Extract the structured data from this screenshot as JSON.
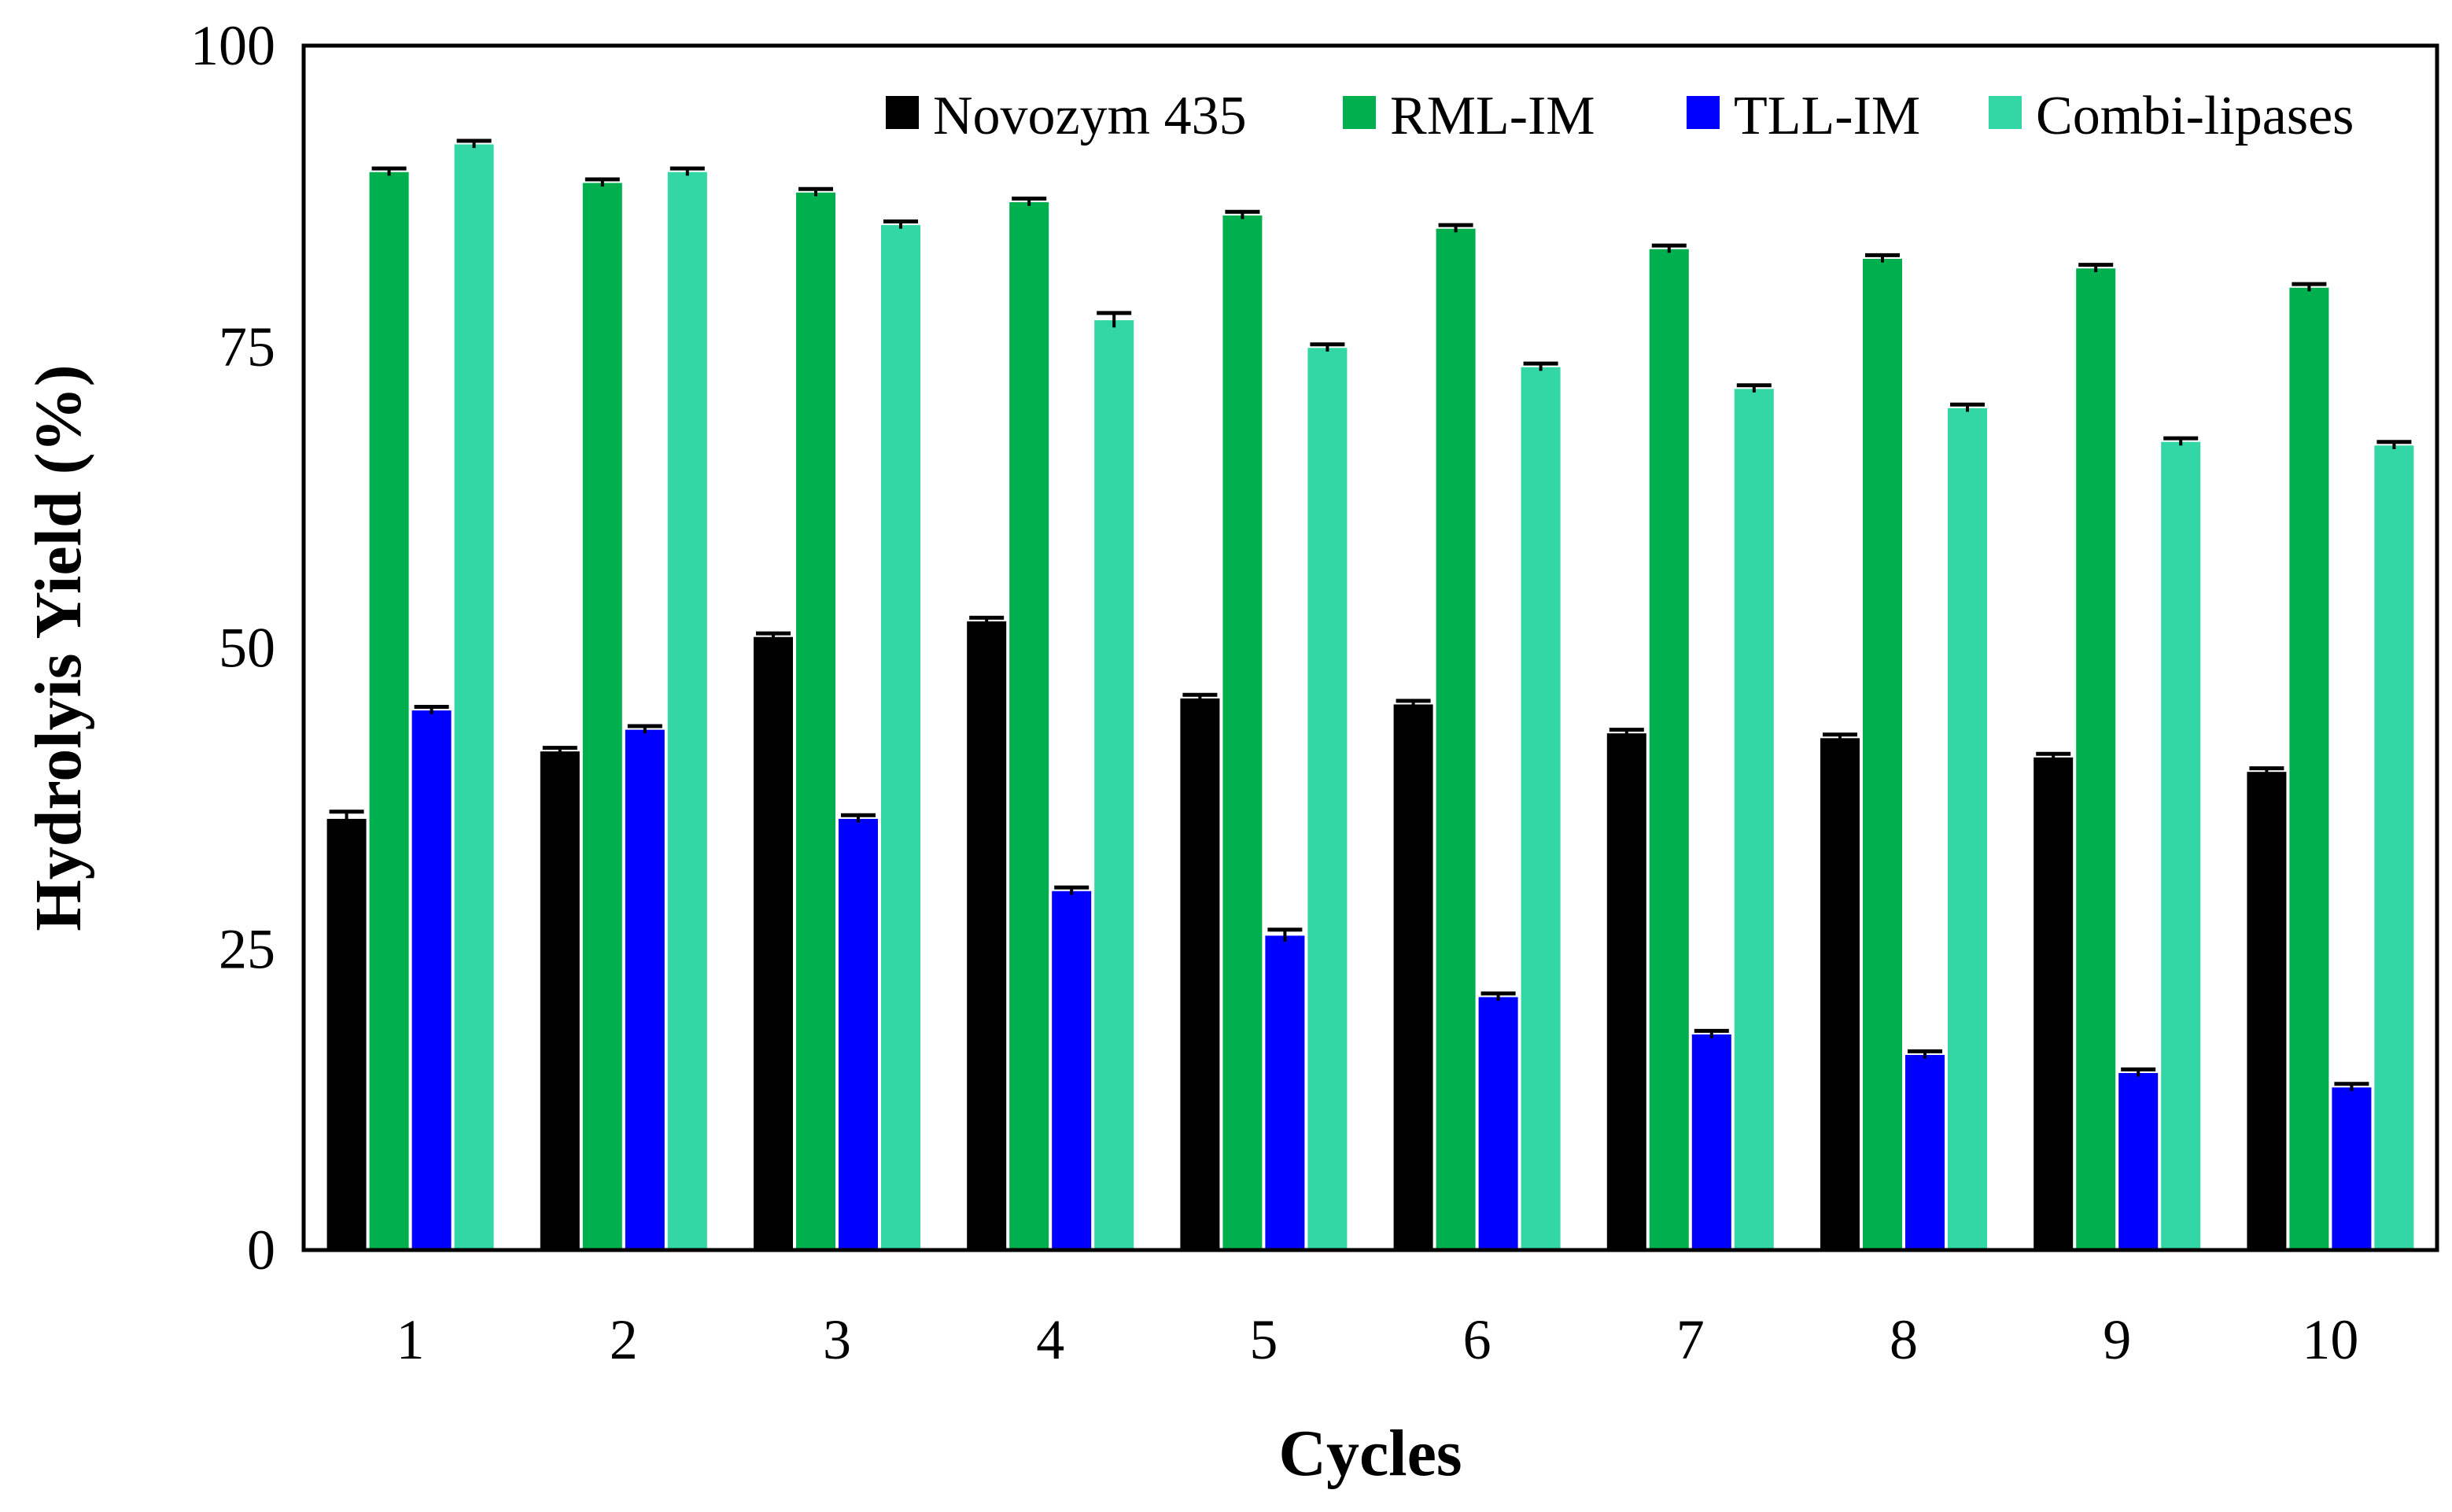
{
  "chart_data": {
    "type": "bar",
    "title": "",
    "xlabel": "Cycles",
    "ylabel": "Hydrolyis Yield (%)",
    "ylim": [
      0,
      100
    ],
    "yticks": [
      0,
      25,
      50,
      75,
      100
    ],
    "grid": false,
    "legend_position": "top-right",
    "categories": [
      "1",
      "2",
      "3",
      "4",
      "5",
      "6",
      "7",
      "8",
      "9",
      "10"
    ],
    "series": [
      {
        "name": "Novozym 435",
        "color": "#000000",
        "values": [
          35.8,
          41.4,
          50.9,
          52.2,
          45.8,
          45.3,
          42.9,
          42.5,
          40.9,
          39.7
        ],
        "errors": [
          0.6,
          0.3,
          0.3,
          0.3,
          0.3,
          0.3,
          0.3,
          0.3,
          0.3,
          0.3
        ]
      },
      {
        "name": "RML-IM",
        "color": "#00b04f",
        "values": [
          89.5,
          88.6,
          87.8,
          87.0,
          85.9,
          84.8,
          83.1,
          82.3,
          81.5,
          79.9
        ],
        "errors": [
          0.3,
          0.3,
          0.3,
          0.3,
          0.3,
          0.3,
          0.3,
          0.3,
          0.3,
          0.3
        ]
      },
      {
        "name": "TLL-IM",
        "color": "#0000ff",
        "values": [
          44.8,
          43.2,
          35.8,
          29.8,
          26.1,
          21.0,
          17.9,
          16.2,
          14.7,
          13.5
        ],
        "errors": [
          0.3,
          0.3,
          0.3,
          0.3,
          0.5,
          0.3,
          0.3,
          0.3,
          0.3,
          0.3
        ]
      },
      {
        "name": "Combi-lipases",
        "color": "#33d6a5",
        "values": [
          91.8,
          89.5,
          85.1,
          77.2,
          74.9,
          73.3,
          71.5,
          69.9,
          67.1,
          66.8
        ],
        "errors": [
          0.3,
          0.3,
          0.3,
          0.6,
          0.3,
          0.3,
          0.3,
          0.3,
          0.3,
          0.3
        ]
      }
    ]
  }
}
